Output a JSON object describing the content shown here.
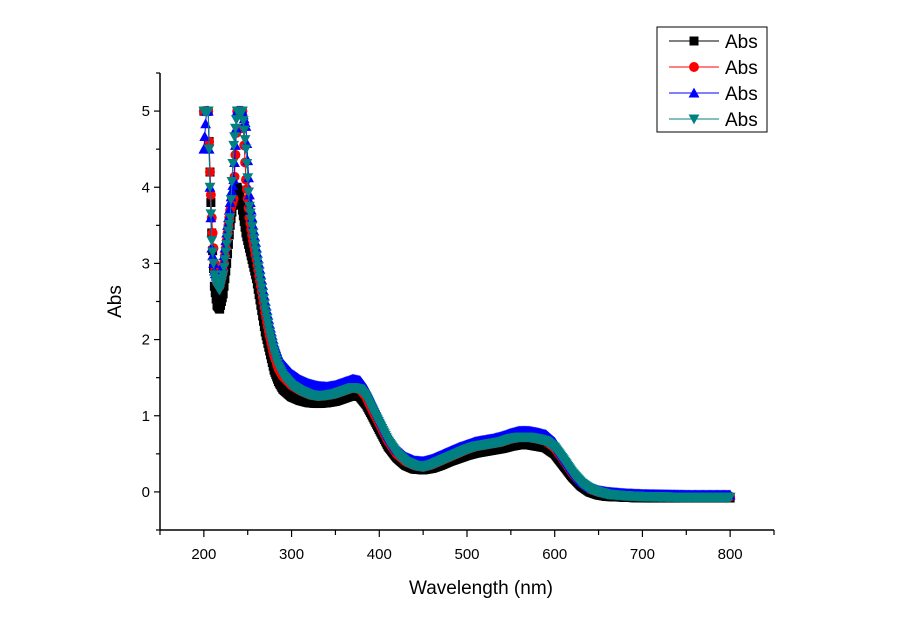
{
  "chart_data": {
    "type": "line",
    "title": "",
    "xlabel": "Wavelength (nm)",
    "ylabel": "Abs",
    "xlim": [
      150,
      850
    ],
    "ylim": [
      -0.5,
      5.5
    ],
    "xticks": [
      200,
      300,
      400,
      500,
      600,
      700,
      800
    ],
    "yticks": [
      0,
      1,
      2,
      3,
      4,
      5
    ],
    "grid": false,
    "legend_position": "top-right",
    "series": [
      {
        "name": "Abs",
        "color": "#000000",
        "marker": "square",
        "x": [
          200,
          203,
          205,
          207,
          209,
          212,
          215,
          218,
          222,
          226,
          230,
          234,
          238,
          241,
          244,
          248,
          252,
          256,
          260,
          265,
          270,
          275,
          280,
          285,
          290,
          300,
          310,
          320,
          330,
          340,
          350,
          360,
          370,
          378,
          385,
          392,
          400,
          410,
          420,
          430,
          440,
          450,
          460,
          470,
          480,
          490,
          500,
          510,
          520,
          530,
          540,
          550,
          560,
          570,
          580,
          590,
          600,
          610,
          620,
          630,
          640,
          650,
          660,
          680,
          700,
          750,
          800
        ],
        "y": [
          5.0,
          5.0,
          5.0,
          4.2,
          3.4,
          2.7,
          2.45,
          2.4,
          2.6,
          3.0,
          3.5,
          3.85,
          4.0,
          3.9,
          3.7,
          3.4,
          3.2,
          3.0,
          2.8,
          2.45,
          2.1,
          1.85,
          1.6,
          1.45,
          1.35,
          1.25,
          1.2,
          1.17,
          1.16,
          1.17,
          1.19,
          1.23,
          1.27,
          1.25,
          1.15,
          1.0,
          0.82,
          0.6,
          0.45,
          0.35,
          0.3,
          0.29,
          0.31,
          0.35,
          0.4,
          0.44,
          0.48,
          0.51,
          0.53,
          0.55,
          0.57,
          0.6,
          0.62,
          0.62,
          0.6,
          0.58,
          0.5,
          0.35,
          0.2,
          0.08,
          0.0,
          -0.04,
          -0.06,
          -0.07,
          -0.08,
          -0.08,
          -0.08
        ]
      },
      {
        "name": "Abs",
        "color": "#ff0000",
        "marker": "circle",
        "x": [
          200,
          203,
          205,
          207,
          209,
          212,
          215,
          218,
          222,
          226,
          230,
          234,
          238,
          241,
          244,
          248,
          252,
          256,
          260,
          265,
          270,
          275,
          280,
          285,
          290,
          300,
          310,
          320,
          330,
          340,
          350,
          360,
          370,
          378,
          385,
          392,
          400,
          410,
          420,
          430,
          440,
          450,
          460,
          470,
          480,
          490,
          500,
          510,
          520,
          530,
          540,
          550,
          560,
          570,
          580,
          590,
          600,
          610,
          620,
          630,
          640,
          650,
          660,
          680,
          700,
          750,
          800
        ],
        "y": [
          5.0,
          5.0,
          5.0,
          4.2,
          3.6,
          3.0,
          2.75,
          2.7,
          2.9,
          3.3,
          3.7,
          3.85,
          5.0,
          5.0,
          5.0,
          4.1,
          3.6,
          3.3,
          3.05,
          2.7,
          2.35,
          2.05,
          1.8,
          1.62,
          1.52,
          1.4,
          1.33,
          1.28,
          1.26,
          1.27,
          1.29,
          1.33,
          1.37,
          1.35,
          1.25,
          1.08,
          0.9,
          0.67,
          0.5,
          0.4,
          0.35,
          0.33,
          0.36,
          0.41,
          0.46,
          0.51,
          0.56,
          0.6,
          0.62,
          0.64,
          0.66,
          0.7,
          0.72,
          0.72,
          0.7,
          0.67,
          0.58,
          0.42,
          0.25,
          0.12,
          0.04,
          0.0,
          -0.02,
          -0.04,
          -0.05,
          -0.06,
          -0.06
        ]
      },
      {
        "name": "Abs",
        "color": "#0000ff",
        "marker": "triangle-up",
        "x": [
          200,
          203,
          205,
          207,
          209,
          212,
          215,
          218,
          222,
          226,
          230,
          234,
          238,
          241,
          244,
          248,
          252,
          256,
          260,
          265,
          270,
          275,
          280,
          285,
          290,
          300,
          310,
          320,
          330,
          340,
          350,
          360,
          370,
          378,
          385,
          392,
          400,
          410,
          420,
          430,
          440,
          450,
          460,
          470,
          480,
          490,
          500,
          510,
          520,
          530,
          540,
          550,
          560,
          570,
          580,
          590,
          600,
          610,
          620,
          630,
          640,
          650,
          660,
          680,
          700,
          750,
          800
        ],
        "y": [
          4.5,
          5.0,
          5.0,
          4.0,
          3.2,
          2.9,
          2.8,
          2.78,
          3.0,
          3.4,
          3.8,
          4.1,
          5.0,
          5.0,
          5.0,
          4.8,
          3.9,
          3.5,
          3.2,
          2.85,
          2.5,
          2.2,
          1.95,
          1.78,
          1.68,
          1.55,
          1.47,
          1.42,
          1.39,
          1.38,
          1.4,
          1.44,
          1.48,
          1.46,
          1.35,
          1.18,
          0.98,
          0.74,
          0.56,
          0.46,
          0.41,
          0.4,
          0.43,
          0.48,
          0.53,
          0.58,
          0.62,
          0.66,
          0.68,
          0.7,
          0.73,
          0.77,
          0.8,
          0.8,
          0.78,
          0.75,
          0.65,
          0.47,
          0.3,
          0.15,
          0.06,
          0.02,
          0.0,
          -0.02,
          -0.03,
          -0.04,
          -0.04
        ]
      },
      {
        "name": "Abs",
        "color": "#008080",
        "marker": "triangle-down",
        "x": [
          200,
          203,
          205,
          207,
          209,
          212,
          215,
          218,
          222,
          226,
          230,
          234,
          238,
          241,
          244,
          248,
          252,
          256,
          260,
          265,
          270,
          275,
          280,
          285,
          290,
          300,
          310,
          320,
          330,
          340,
          350,
          360,
          370,
          378,
          385,
          392,
          400,
          410,
          420,
          430,
          440,
          450,
          460,
          470,
          480,
          490,
          500,
          510,
          520,
          530,
          540,
          550,
          560,
          570,
          580,
          590,
          600,
          610,
          620,
          630,
          640,
          650,
          660,
          680,
          700,
          750,
          800
        ],
        "y": [
          5.0,
          5.0,
          5.0,
          4.0,
          3.3,
          2.85,
          2.7,
          2.65,
          2.85,
          3.25,
          3.6,
          4.55,
          5.0,
          5.0,
          5.0,
          4.5,
          3.75,
          3.4,
          3.1,
          2.75,
          2.4,
          2.1,
          1.85,
          1.65,
          1.53,
          1.4,
          1.33,
          1.28,
          1.26,
          1.27,
          1.29,
          1.33,
          1.37,
          1.35,
          1.25,
          1.08,
          0.9,
          0.67,
          0.5,
          0.4,
          0.35,
          0.33,
          0.36,
          0.41,
          0.46,
          0.51,
          0.56,
          0.6,
          0.62,
          0.64,
          0.66,
          0.7,
          0.72,
          0.72,
          0.7,
          0.67,
          0.58,
          0.42,
          0.25,
          0.12,
          0.04,
          0.0,
          -0.03,
          -0.05,
          -0.06,
          -0.07,
          -0.07
        ]
      }
    ]
  }
}
